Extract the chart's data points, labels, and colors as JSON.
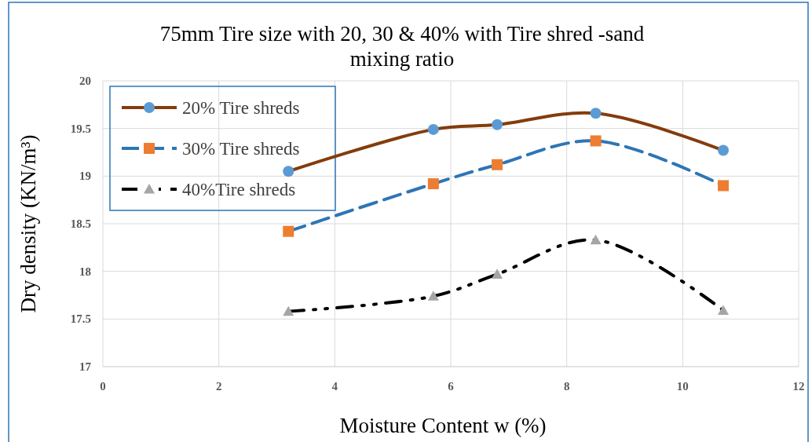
{
  "chart_data": {
    "type": "line",
    "title": "75mm Tire size with 20, 30 & 40% with Tire shred -sand mixing ratio",
    "xlabel": "Moisture Content w (%)",
    "ylabel": "Dry density (KN/m³)",
    "xlim": [
      0,
      12
    ],
    "xticks": [
      0,
      2,
      4,
      6,
      8,
      10,
      12
    ],
    "ylim": [
      17,
      20
    ],
    "yticks": [
      17,
      17.5,
      18,
      18.5,
      19,
      19.5,
      20
    ],
    "grid": true,
    "legend": "top left",
    "series": [
      {
        "name": "20% Tire shreds",
        "color": "#843c0c",
        "colors": [
          "#5b9bd5",
          "#5b9bd5",
          "#5b9bd5",
          "#5b9bd5",
          "#5b9bd5"
        ],
        "marker": "circle",
        "line_style": "solid",
        "x": [
          3.2,
          5.7,
          6.8,
          8.5,
          10.7
        ],
        "values": [
          19.05,
          19.49,
          19.54,
          19.66,
          19.27
        ]
      },
      {
        "name": "30% Tire shreds",
        "color": "#2e75b6",
        "colors": [
          "#ed7d31",
          "#ed7d31",
          "#ed7d31",
          "#ed7d31",
          "#ed7d31"
        ],
        "marker": "square",
        "line_style": "dashed",
        "x": [
          3.2,
          5.7,
          6.8,
          8.5,
          10.7
        ],
        "values": [
          18.42,
          18.92,
          19.12,
          19.37,
          18.9
        ]
      },
      {
        "name": "40%Tire shreds",
        "color": "#000000",
        "colors": [
          "#a5a5a5",
          "#a5a5a5",
          "#a5a5a5",
          "#a5a5a5",
          "#a5a5a5"
        ],
        "marker": "triangle",
        "line_style": "dotted",
        "x": [
          3.2,
          5.7,
          6.8,
          8.5,
          10.7
        ],
        "values": [
          17.58,
          17.74,
          17.97,
          18.33,
          17.59
        ]
      }
    ]
  }
}
